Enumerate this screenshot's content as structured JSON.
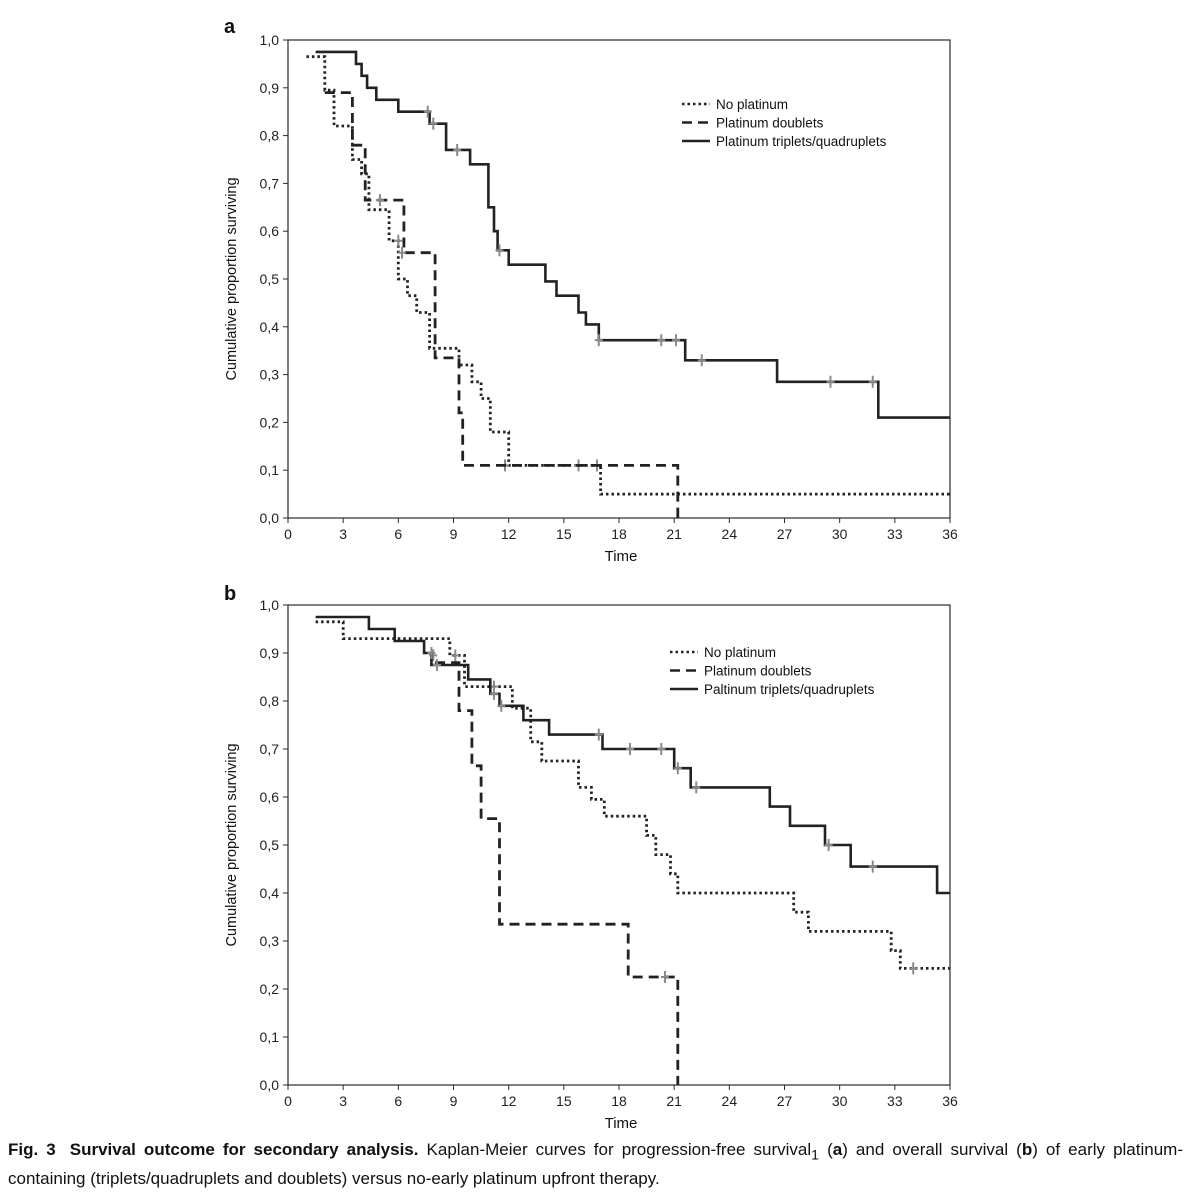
{
  "chart_data": [
    {
      "panel": "a",
      "type": "line",
      "step": true,
      "xlabel": "Time",
      "ylabel": "Cumulative proportion surviving",
      "xlim": [
        0,
        36
      ],
      "ylim": [
        0,
        1
      ],
      "xticks": [
        "0",
        "3",
        "6",
        "9",
        "12",
        "15",
        "18",
        "21",
        "24",
        "27",
        "30",
        "33",
        "36"
      ],
      "yticks": [
        "0,0",
        "0,1",
        "0,2",
        "0,3",
        "0,4",
        "0,5",
        "0,6",
        "0,7",
        "0,8",
        "0,9",
        "1,0"
      ],
      "legend_position": "top-right",
      "series": [
        {
          "name": "No platinum",
          "style": "dotted",
          "points": [
            [
              1,
              0.965
            ],
            [
              2,
              0.965
            ],
            [
              2,
              0.895
            ],
            [
              2.5,
              0.895
            ],
            [
              2.5,
              0.82
            ],
            [
              3.5,
              0.82
            ],
            [
              3.5,
              0.75
            ],
            [
              4,
              0.75
            ],
            [
              4,
              0.72
            ],
            [
              4.4,
              0.72
            ],
            [
              4.4,
              0.645
            ],
            [
              5.5,
              0.645
            ],
            [
              5.5,
              0.58
            ],
            [
              6,
              0.58
            ],
            [
              6,
              0.5
            ],
            [
              6.5,
              0.5
            ],
            [
              6.5,
              0.465
            ],
            [
              7,
              0.465
            ],
            [
              7,
              0.43
            ],
            [
              7.7,
              0.43
            ],
            [
              7.7,
              0.355
            ],
            [
              9.3,
              0.355
            ],
            [
              9.3,
              0.32
            ],
            [
              10,
              0.32
            ],
            [
              10,
              0.285
            ],
            [
              10.5,
              0.285
            ],
            [
              10.5,
              0.25
            ],
            [
              11,
              0.25
            ],
            [
              11,
              0.215
            ],
            [
              11,
              0.215
            ],
            [
              11,
              0.18
            ],
            [
              12,
              0.18
            ],
            [
              12,
              0.11
            ],
            [
              17,
              0.11
            ],
            [
              17,
              0.05
            ],
            [
              36,
              0.05
            ]
          ],
          "censored": [
            [
              6,
              0.58
            ],
            [
              11.8,
              0.11
            ],
            [
              15.8,
              0.11
            ],
            [
              16.8,
              0.11
            ]
          ]
        },
        {
          "name": "Platinum doublets",
          "style": "dashed",
          "points": [
            [
              2,
              0.89
            ],
            [
              3.5,
              0.89
            ],
            [
              3.5,
              0.78
            ],
            [
              4.2,
              0.78
            ],
            [
              4.2,
              0.665
            ],
            [
              6.3,
              0.665
            ],
            [
              6.3,
              0.555
            ],
            [
              8,
              0.555
            ],
            [
              8,
              0.335
            ],
            [
              9.3,
              0.335
            ],
            [
              9.3,
              0.22
            ],
            [
              9.5,
              0.22
            ],
            [
              9.5,
              0.11
            ],
            [
              21.2,
              0.11
            ],
            [
              21.2,
              0.0
            ]
          ],
          "censored": [
            [
              5,
              0.665
            ],
            [
              6.2,
              0.555
            ]
          ]
        },
        {
          "name": "Platinum triplets/quadruplets",
          "style": "solid",
          "points": [
            [
              1.5,
              0.975
            ],
            [
              3.7,
              0.975
            ],
            [
              3.7,
              0.95
            ],
            [
              4,
              0.95
            ],
            [
              4,
              0.925
            ],
            [
              4.3,
              0.925
            ],
            [
              4.3,
              0.9
            ],
            [
              4.8,
              0.9
            ],
            [
              4.8,
              0.875
            ],
            [
              6,
              0.875
            ],
            [
              6,
              0.85
            ],
            [
              7.7,
              0.85
            ],
            [
              7.7,
              0.825
            ],
            [
              8.6,
              0.825
            ],
            [
              8.6,
              0.77
            ],
            [
              9.9,
              0.77
            ],
            [
              9.9,
              0.74
            ],
            [
              10.9,
              0.74
            ],
            [
              10.9,
              0.65
            ],
            [
              11.2,
              0.65
            ],
            [
              11.2,
              0.6
            ],
            [
              11.4,
              0.6
            ],
            [
              11.4,
              0.56
            ],
            [
              12,
              0.56
            ],
            [
              12,
              0.53
            ],
            [
              14,
              0.53
            ],
            [
              14,
              0.495
            ],
            [
              14.6,
              0.495
            ],
            [
              14.6,
              0.465
            ],
            [
              15.8,
              0.465
            ],
            [
              15.8,
              0.43
            ],
            [
              16.2,
              0.43
            ],
            [
              16.2,
              0.405
            ],
            [
              16.9,
              0.405
            ],
            [
              16.9,
              0.372
            ],
            [
              21.6,
              0.372
            ],
            [
              21.6,
              0.33
            ],
            [
              26.6,
              0.33
            ],
            [
              26.6,
              0.285
            ],
            [
              32.1,
              0.285
            ],
            [
              32.1,
              0.21
            ],
            [
              36,
              0.21
            ]
          ],
          "censored": [
            [
              7.6,
              0.85
            ],
            [
              7.9,
              0.825
            ],
            [
              9.2,
              0.77
            ],
            [
              11.5,
              0.56
            ],
            [
              16.9,
              0.372
            ],
            [
              20.3,
              0.372
            ],
            [
              21.1,
              0.372
            ],
            [
              22.5,
              0.33
            ],
            [
              29.5,
              0.285
            ],
            [
              31.8,
              0.285
            ]
          ]
        }
      ]
    },
    {
      "panel": "b",
      "type": "line",
      "step": true,
      "xlabel": "Time",
      "ylabel": "Cumulative proportion surviving",
      "xlim": [
        0,
        36
      ],
      "ylim": [
        0,
        1
      ],
      "xticks": [
        "0",
        "3",
        "6",
        "9",
        "12",
        "15",
        "18",
        "21",
        "24",
        "27",
        "30",
        "33",
        "36"
      ],
      "yticks": [
        "0,0",
        "0,1",
        "0,2",
        "0,3",
        "0,4",
        "0,5",
        "0,6",
        "0,7",
        "0,8",
        "0,9",
        "1,0"
      ],
      "legend_position": "top-right",
      "series": [
        {
          "name": "No platinum",
          "style": "dotted",
          "points": [
            [
              1.5,
              0.965
            ],
            [
              3,
              0.965
            ],
            [
              3,
              0.93
            ],
            [
              8.8,
              0.93
            ],
            [
              8.8,
              0.895
            ],
            [
              9.6,
              0.895
            ],
            [
              9.6,
              0.83
            ],
            [
              12.2,
              0.83
            ],
            [
              12.2,
              0.785
            ],
            [
              13.2,
              0.785
            ],
            [
              13.2,
              0.715
            ],
            [
              13.8,
              0.715
            ],
            [
              13.8,
              0.675
            ],
            [
              15.8,
              0.675
            ],
            [
              15.8,
              0.62
            ],
            [
              16.5,
              0.62
            ],
            [
              16.5,
              0.595
            ],
            [
              17.2,
              0.595
            ],
            [
              17.2,
              0.56
            ],
            [
              19.5,
              0.56
            ],
            [
              19.5,
              0.52
            ],
            [
              20,
              0.52
            ],
            [
              20,
              0.48
            ],
            [
              20.8,
              0.48
            ],
            [
              20.8,
              0.44
            ],
            [
              21.2,
              0.44
            ],
            [
              21.2,
              0.4
            ],
            [
              27.5,
              0.4
            ],
            [
              27.5,
              0.36
            ],
            [
              28.3,
              0.36
            ],
            [
              28.3,
              0.32
            ],
            [
              32.8,
              0.32
            ],
            [
              32.8,
              0.28
            ],
            [
              33.3,
              0.28
            ],
            [
              33.3,
              0.243
            ],
            [
              36,
              0.243
            ]
          ],
          "censored": [
            [
              7.9,
              0.895
            ],
            [
              9.1,
              0.895
            ],
            [
              11.2,
              0.83
            ],
            [
              34,
              0.243
            ]
          ]
        },
        {
          "name": "Platinum doublets",
          "style": "dashed",
          "points": [
            [
              8,
              0.88
            ],
            [
              9.3,
              0.88
            ],
            [
              9.3,
              0.78
            ],
            [
              10,
              0.78
            ],
            [
              10,
              0.665
            ],
            [
              10.5,
              0.665
            ],
            [
              10.5,
              0.555
            ],
            [
              11.5,
              0.555
            ],
            [
              11.5,
              0.335
            ],
            [
              18.5,
              0.335
            ],
            [
              18.5,
              0.225
            ],
            [
              21.2,
              0.225
            ],
            [
              21.2,
              0.0
            ]
          ],
          "censored": [
            [
              20.5,
              0.225
            ]
          ]
        },
        {
          "name": "Paltinum triplets/quadruplets",
          "style": "solid",
          "points": [
            [
              1.5,
              0.975
            ],
            [
              4.4,
              0.975
            ],
            [
              4.4,
              0.95
            ],
            [
              5.8,
              0.95
            ],
            [
              5.8,
              0.925
            ],
            [
              7.4,
              0.925
            ],
            [
              7.4,
              0.9
            ],
            [
              7.8,
              0.9
            ],
            [
              7.8,
              0.875
            ],
            [
              9.8,
              0.875
            ],
            [
              9.8,
              0.845
            ],
            [
              11,
              0.845
            ],
            [
              11,
              0.815
            ],
            [
              11.5,
              0.815
            ],
            [
              11.5,
              0.79
            ],
            [
              12.8,
              0.79
            ],
            [
              12.8,
              0.76
            ],
            [
              14.2,
              0.76
            ],
            [
              14.2,
              0.73
            ],
            [
              17.1,
              0.73
            ],
            [
              17.1,
              0.7
            ],
            [
              21,
              0.7
            ],
            [
              21,
              0.66
            ],
            [
              21.9,
              0.66
            ],
            [
              21.9,
              0.62
            ],
            [
              26.2,
              0.62
            ],
            [
              26.2,
              0.58
            ],
            [
              27.3,
              0.58
            ],
            [
              27.3,
              0.54
            ],
            [
              29.2,
              0.54
            ],
            [
              29.2,
              0.5
            ],
            [
              30.6,
              0.5
            ],
            [
              30.6,
              0.455
            ],
            [
              35.3,
              0.455
            ],
            [
              35.3,
              0.4
            ],
            [
              36,
              0.4
            ]
          ],
          "censored": [
            [
              7.8,
              0.9
            ],
            [
              8.1,
              0.875
            ],
            [
              11.2,
              0.815
            ],
            [
              11.6,
              0.79
            ],
            [
              16.9,
              0.73
            ],
            [
              18.6,
              0.7
            ],
            [
              20.3,
              0.7
            ],
            [
              21.2,
              0.66
            ],
            [
              22.2,
              0.62
            ],
            [
              29.4,
              0.5
            ],
            [
              31.8,
              0.455
            ]
          ]
        }
      ]
    }
  ],
  "caption": {
    "label": "Fig. 3",
    "title": "Survival outcome for secondary analysis.",
    "text_1": " Kaplan-Meier curves for progression-free survival",
    "subscript": "1",
    "text_2": " (",
    "panel_a": "a",
    "text_3": ") and overall survival (",
    "panel_b": "b",
    "text_4": ") of early platinum-containing (triplets/quadruplets and doublets) versus no-early platinum upfront therapy."
  },
  "colors": {
    "line": "#222222",
    "censor": "#8a8a8a",
    "axis": "#2a2a2a"
  }
}
